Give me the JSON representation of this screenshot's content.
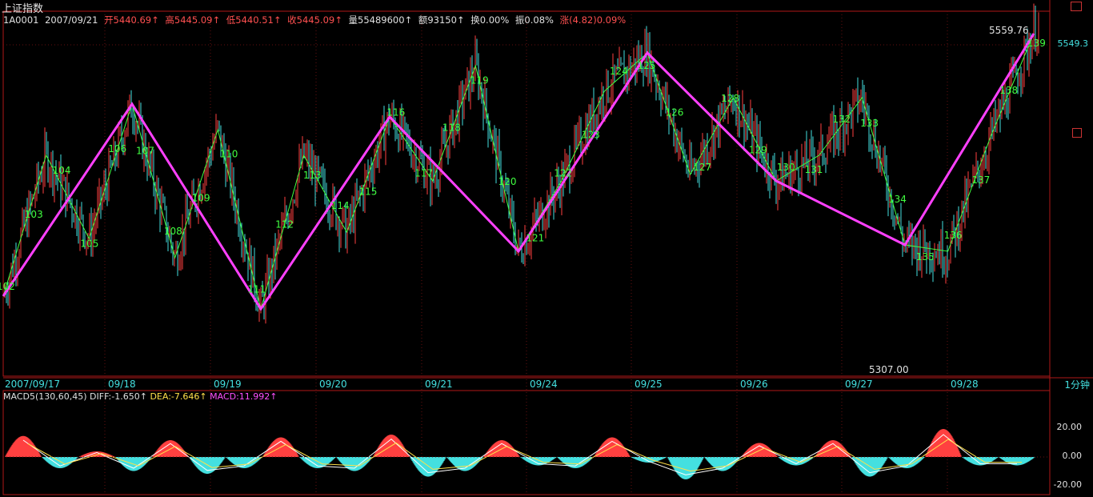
{
  "header": {
    "title": "上证指数",
    "code": "1A0001",
    "date": "2007/09/21",
    "open": "开5440.69↑",
    "high": "高5445.09↑",
    "low": "低5440.51↑",
    "close": "收5445.09↑",
    "volume": "量55489600↑",
    "amount": "额93150↑",
    "turnover": "换0.00%",
    "amplitude": "振0.08%",
    "change": "涨(4.82)0.09%"
  },
  "right_price_label": "5549.3",
  "period_label": "1分钟",
  "macd": {
    "label": "MACD5(130,60,45)",
    "diff": "DIFF:-1.650↑",
    "dea": "DEA:-7.646↑",
    "macd": "MACD:11.992↑",
    "yticks": [
      "20.00",
      "0.00",
      "-20.00"
    ]
  },
  "colors": {
    "background": "#000000",
    "frame": "#b01818",
    "up": "#ff4040",
    "down": "#44e0e0",
    "zigzag_green": "#40ff40",
    "zigzag_magenta": "#ff40ff",
    "zigzag_red": "#ff2020",
    "label_green": "#40ff40"
  },
  "chart_data": {
    "type": "line",
    "x_tick_labels": [
      "2007/09/17",
      "09/18",
      "09/19",
      "09/20",
      "09/21",
      "09/24",
      "09/25",
      "09/26",
      "09/27",
      "09/28"
    ],
    "price_extremes": {
      "high": "5559.76",
      "low": "5307.00"
    },
    "pivot_labels": [
      "102",
      "103",
      "104",
      "105",
      "106",
      "107",
      "108",
      "109",
      "110",
      "111",
      "112",
      "113",
      "114",
      "115",
      "116",
      "117",
      "118",
      "119",
      "120",
      "121",
      "122",
      "123",
      "124",
      "125",
      "126",
      "127",
      "128",
      "129",
      "130",
      "131",
      "132",
      "133",
      "134",
      "135",
      "136",
      "137",
      "138",
      "139"
    ],
    "zigzag": [
      5360,
      5470,
      5405,
      5510,
      5390,
      5490,
      5350,
      5470,
      5410,
      5500,
      5450,
      5540,
      5395,
      5450,
      5520,
      5550,
      5455,
      5515,
      5450,
      5470,
      5515,
      5400,
      5395,
      5485,
      5565
    ],
    "macd_histogram": [
      15,
      -8,
      4,
      -10,
      12,
      -12,
      -8,
      14,
      -8,
      -10,
      16,
      -14,
      -10,
      12,
      -6,
      -8,
      14,
      -4,
      -16,
      -10,
      10,
      -6,
      12,
      -14,
      -8,
      20,
      -6,
      -6
    ]
  }
}
